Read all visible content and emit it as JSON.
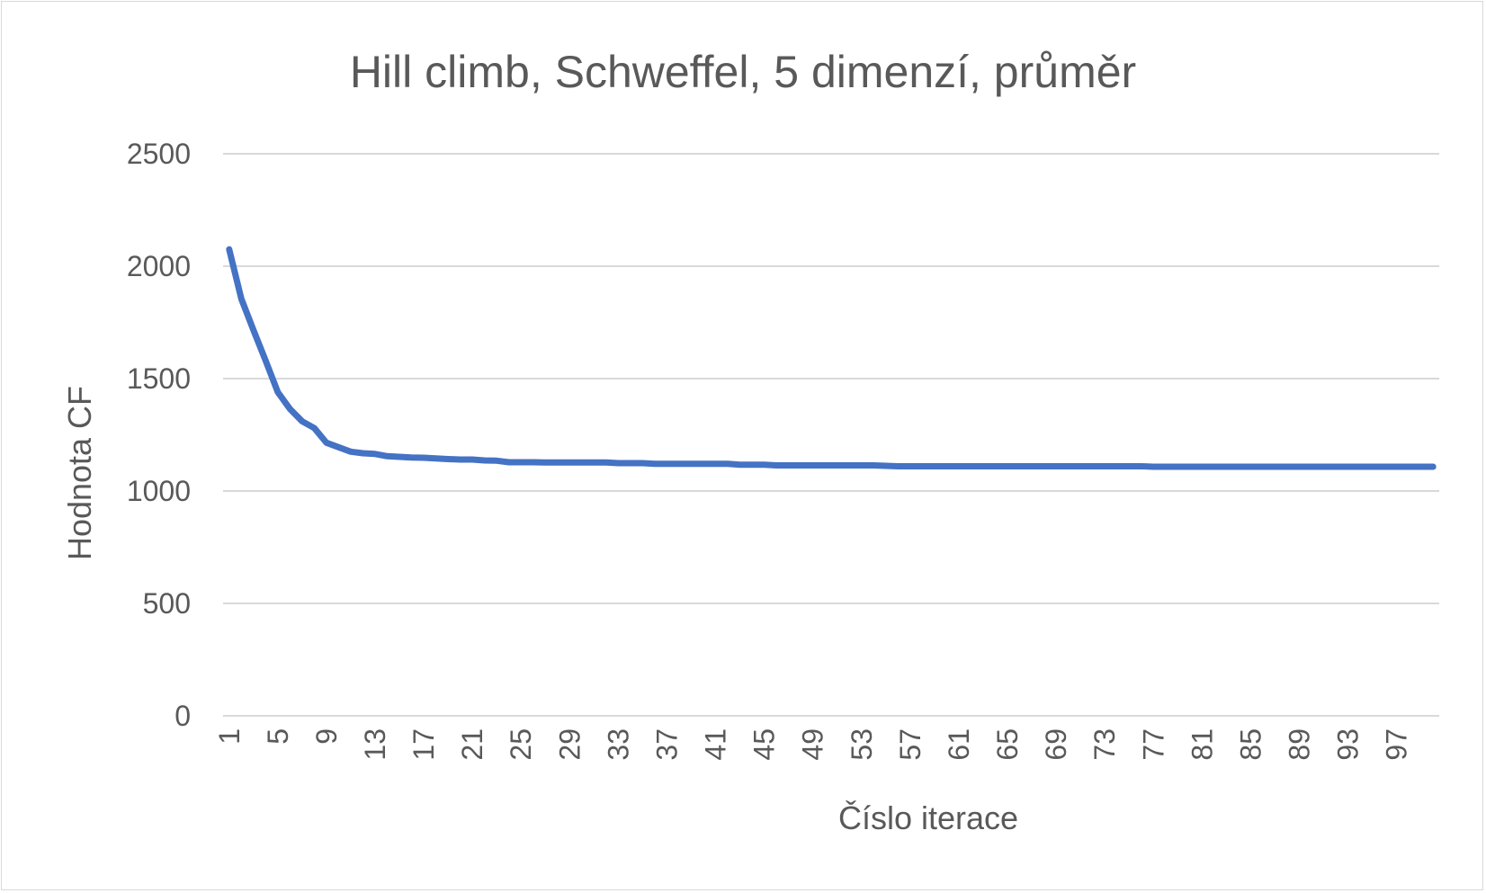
{
  "chart_data": {
    "type": "line",
    "title": "Hill climb, Schweffel, 5 dimenzí, průměr",
    "xlabel": "Číslo iterace",
    "ylabel": "Hodnota CF",
    "ylim": [
      0,
      2500
    ],
    "y_ticks": [
      "0",
      "500",
      "1000",
      "1500",
      "2000",
      "2500"
    ],
    "x_tick_labels": [
      "1",
      "5",
      "9",
      "13",
      "17",
      "21",
      "25",
      "29",
      "33",
      "37",
      "41",
      "45",
      "49",
      "53",
      "57",
      "61",
      "65",
      "69",
      "73",
      "77",
      "81",
      "85",
      "89",
      "93",
      "97"
    ],
    "grid": true,
    "colors": {
      "series": "#4472c4",
      "grid": "#d9d9d9",
      "text": "#595959"
    },
    "series": [
      {
        "name": "průměr",
        "x": [
          1,
          2,
          3,
          4,
          5,
          6,
          7,
          8,
          9,
          10,
          11,
          12,
          13,
          14,
          15,
          16,
          17,
          18,
          19,
          20,
          21,
          22,
          23,
          24,
          25,
          26,
          27,
          28,
          29,
          30,
          31,
          32,
          33,
          34,
          35,
          36,
          37,
          38,
          39,
          40,
          41,
          42,
          43,
          44,
          45,
          46,
          47,
          48,
          49,
          50,
          51,
          52,
          53,
          54,
          55,
          56,
          57,
          58,
          59,
          60,
          61,
          62,
          63,
          64,
          65,
          66,
          67,
          68,
          69,
          70,
          71,
          72,
          73,
          74,
          75,
          76,
          77,
          78,
          79,
          80,
          81,
          82,
          83,
          84,
          85,
          86,
          87,
          88,
          89,
          90,
          91,
          92,
          93,
          94,
          95,
          96,
          97,
          98,
          99,
          100
        ],
        "values": [
          2075,
          1855,
          1715,
          1580,
          1440,
          1365,
          1310,
          1280,
          1215,
          1195,
          1175,
          1168,
          1165,
          1155,
          1152,
          1149,
          1148,
          1145,
          1142,
          1140,
          1140,
          1136,
          1135,
          1128,
          1128,
          1128,
          1127,
          1127,
          1127,
          1127,
          1127,
          1127,
          1124,
          1124,
          1124,
          1121,
          1121,
          1121,
          1121,
          1121,
          1121,
          1121,
          1117,
          1117,
          1117,
          1114,
          1114,
          1114,
          1114,
          1114,
          1114,
          1114,
          1114,
          1114,
          1112,
          1110,
          1110,
          1110,
          1110,
          1110,
          1110,
          1110,
          1110,
          1110,
          1110,
          1110,
          1110,
          1110,
          1110,
          1110,
          1110,
          1110,
          1110,
          1110,
          1110,
          1110,
          1108,
          1108,
          1108,
          1108,
          1108,
          1108,
          1108,
          1108,
          1108,
          1108,
          1108,
          1108,
          1108,
          1108,
          1108,
          1108,
          1108,
          1108,
          1108,
          1108,
          1108,
          1108,
          1108,
          1108
        ]
      }
    ]
  }
}
